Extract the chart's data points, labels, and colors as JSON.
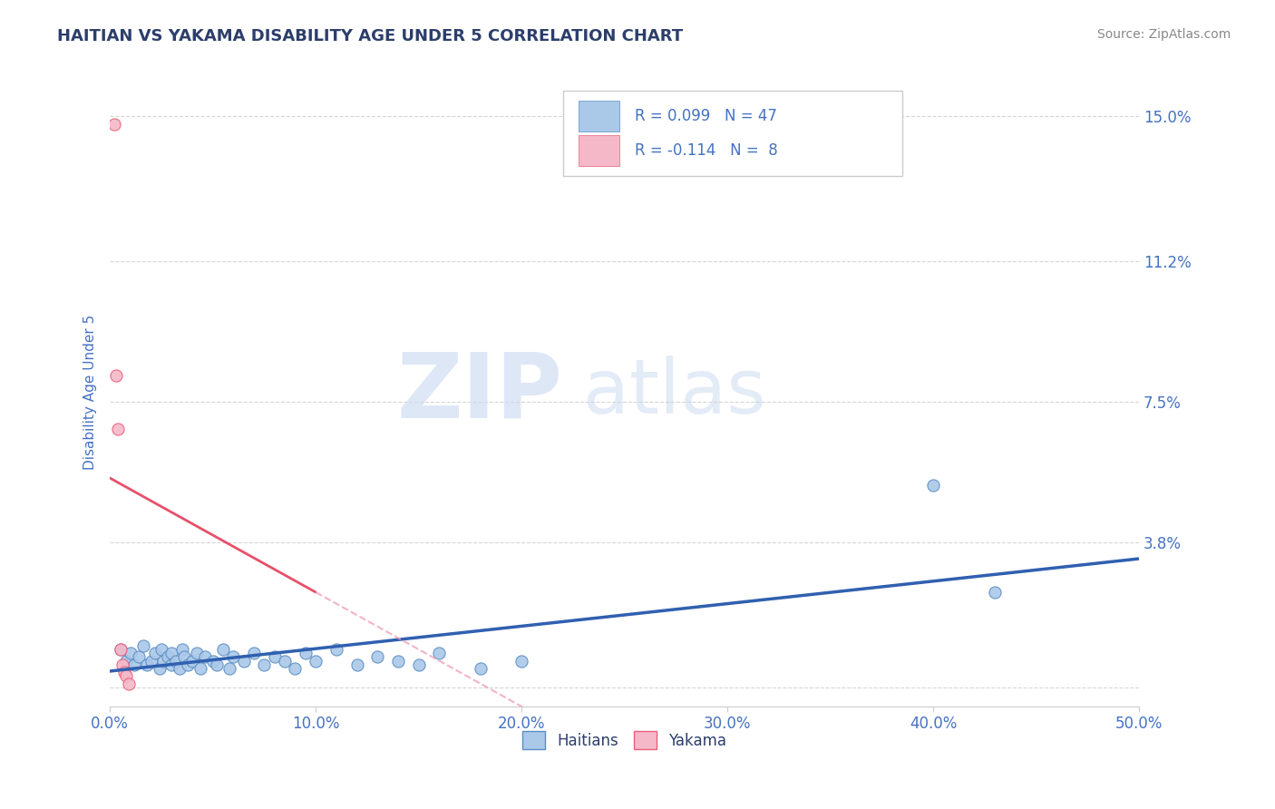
{
  "title": "HAITIAN VS YAKAMA DISABILITY AGE UNDER 5 CORRELATION CHART",
  "source": "Source: ZipAtlas.com",
  "ylabel": "Disability Age Under 5",
  "xlim": [
    0.0,
    0.5
  ],
  "ylim": [
    -0.005,
    0.16
  ],
  "yticks": [
    0.0,
    0.038,
    0.075,
    0.112,
    0.15
  ],
  "ytick_labels": [
    "",
    "3.8%",
    "7.5%",
    "11.2%",
    "15.0%"
  ],
  "xticks": [
    0.0,
    0.1,
    0.2,
    0.3,
    0.4,
    0.5
  ],
  "xtick_labels": [
    "0.0%",
    "10.0%",
    "20.0%",
    "30.0%",
    "40.0%",
    "50.0%"
  ],
  "haitians_scatter_x": [
    0.005,
    0.008,
    0.01,
    0.012,
    0.014,
    0.016,
    0.018,
    0.02,
    0.022,
    0.024,
    0.025,
    0.026,
    0.028,
    0.03,
    0.03,
    0.032,
    0.034,
    0.035,
    0.036,
    0.038,
    0.04,
    0.042,
    0.044,
    0.046,
    0.05,
    0.052,
    0.055,
    0.058,
    0.06,
    0.065,
    0.07,
    0.075,
    0.08,
    0.085,
    0.09,
    0.095,
    0.1,
    0.11,
    0.12,
    0.13,
    0.14,
    0.15,
    0.16,
    0.18,
    0.2,
    0.4,
    0.43
  ],
  "haitians_scatter_y": [
    0.01,
    0.007,
    0.009,
    0.006,
    0.008,
    0.011,
    0.006,
    0.007,
    0.009,
    0.005,
    0.01,
    0.007,
    0.008,
    0.006,
    0.009,
    0.007,
    0.005,
    0.01,
    0.008,
    0.006,
    0.007,
    0.009,
    0.005,
    0.008,
    0.007,
    0.006,
    0.01,
    0.005,
    0.008,
    0.007,
    0.009,
    0.006,
    0.008,
    0.007,
    0.005,
    0.009,
    0.007,
    0.01,
    0.006,
    0.008,
    0.007,
    0.006,
    0.009,
    0.005,
    0.007,
    0.053,
    0.025
  ],
  "yakama_scatter_x": [
    0.002,
    0.003,
    0.004,
    0.005,
    0.006,
    0.007,
    0.008,
    0.009
  ],
  "yakama_scatter_y": [
    0.148,
    0.082,
    0.068,
    0.01,
    0.006,
    0.004,
    0.003,
    0.001
  ],
  "haitians_color": "#aac8e8",
  "yakama_color": "#f5b8c8",
  "haitians_edge_color": "#5b8ec4",
  "yakama_edge_color": "#e8607a",
  "haitians_line_color": "#3060b0",
  "yakama_line_color": "#e8506a",
  "yakama_dash_color": "#f0a0b8",
  "haitians_R": 0.099,
  "haitians_N": 47,
  "yakama_R": -0.114,
  "yakama_N": 8,
  "legend_label_haitians": "Haitians",
  "legend_label_yakama": "Yakama",
  "watermark_zip": "ZIP",
  "watermark_atlas": "atlas",
  "title_color": "#2c3e6b",
  "axis_label_color": "#4472c4",
  "tick_label_color": "#4472c4",
  "grid_color": "#cccccc",
  "background_color": "#ffffff"
}
